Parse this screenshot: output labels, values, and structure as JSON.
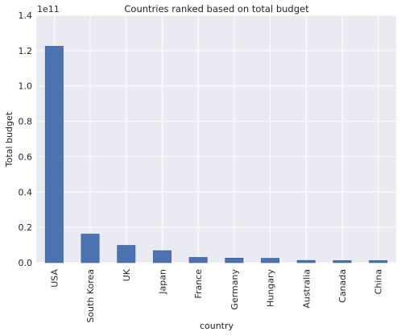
{
  "chart_data": {
    "type": "bar",
    "title": "Countries ranked based on total budget",
    "xlabel": "country",
    "ylabel": "Total budget",
    "offset_label": "1e11",
    "ylim": [
      0,
      1.4
    ],
    "yticks": [
      "0.0",
      "0.2",
      "0.4",
      "0.6",
      "0.8",
      "1.0",
      "1.2",
      "1.4"
    ],
    "grid": true,
    "categories": [
      "USA",
      "South Korea",
      "UK",
      "Japan",
      "France",
      "Germany",
      "Hungary",
      "Australia",
      "Canada",
      "China"
    ],
    "values": [
      1.225,
      0.162,
      0.098,
      0.068,
      0.03,
      0.026,
      0.025,
      0.013,
      0.012,
      0.012
    ],
    "colors": {
      "bar": "#4c72b0",
      "bar_edge": "#3b5a8c",
      "background": "#eaeaf2",
      "grid": "#ffffff"
    }
  }
}
